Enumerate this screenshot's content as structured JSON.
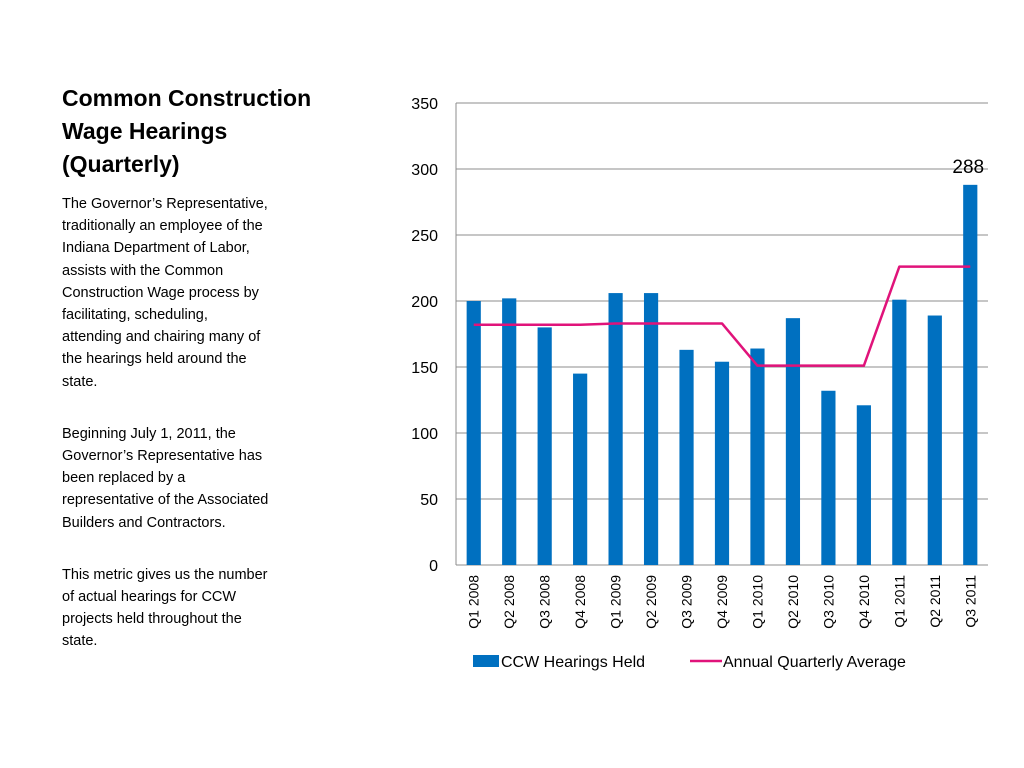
{
  "slide": {
    "title_lines": [
      "Common Construction",
      "Wage Hearings",
      "(Quarterly)"
    ],
    "paragraphs": [
      [
        "The Governor’s Representative,",
        "traditionally an employee of the",
        "Indiana Department of Labor,",
        "assists with the Common",
        "Construction Wage process by",
        "facilitating, scheduling,",
        "attending and chairing many of",
        "the hearings held around the",
        "state."
      ],
      [
        "Beginning July 1, 2011, the",
        "Governor’s Representative has",
        "been replaced by a",
        "representative of the Associated",
        "Builders and Contractors."
      ],
      [
        "This metric gives us the number",
        "of actual hearings for CCW",
        "projects held throughout the",
        "state."
      ]
    ]
  },
  "chart_data": {
    "type": "bar",
    "categories": [
      "Q1 2008",
      "Q2 2008",
      "Q3 2008",
      "Q4 2008",
      "Q1 2009",
      "Q2 2009",
      "Q3 2009",
      "Q4 2009",
      "Q1 2010",
      "Q2 2010",
      "Q3 2010",
      "Q4 2010",
      "Q1 2011",
      "Q2 2011",
      "Q3 2011"
    ],
    "series": [
      {
        "name": "CCW Hearings Held",
        "kind": "bar",
        "color": "#0070C0",
        "values": [
          200,
          202,
          180,
          145,
          206,
          206,
          163,
          154,
          164,
          187,
          132,
          121,
          201,
          189,
          288
        ]
      },
      {
        "name": "Annual Quarterly Average",
        "kind": "line",
        "color": "#E0137A",
        "values": [
          182,
          182,
          182,
          182,
          183,
          183,
          183,
          183,
          151,
          151,
          151,
          151,
          226,
          226,
          226
        ]
      }
    ],
    "data_labels": [
      {
        "category": "Q3 2011",
        "text": "288"
      }
    ],
    "ylim": [
      0,
      350
    ],
    "yticks": [
      0,
      50,
      100,
      150,
      200,
      250,
      300,
      350
    ],
    "grid": true,
    "legend": "bottom"
  }
}
